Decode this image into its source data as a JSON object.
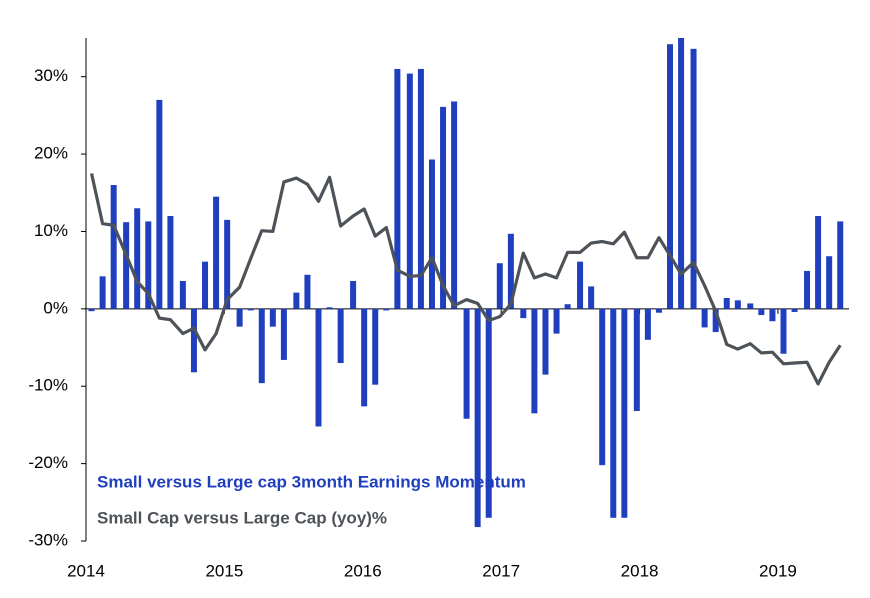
{
  "chart_data": {
    "type": "bar",
    "x": [
      2014.04,
      2014.12,
      2014.2,
      2014.29,
      2014.37,
      2014.45,
      2014.53,
      2014.61,
      2014.7,
      2014.78,
      2014.86,
      2014.94,
      2015.02,
      2015.11,
      2015.19,
      2015.27,
      2015.35,
      2015.43,
      2015.52,
      2015.6,
      2015.68,
      2015.76,
      2015.84,
      2015.93,
      2016.01,
      2016.09,
      2016.17,
      2016.25,
      2016.34,
      2016.42,
      2016.5,
      2016.58,
      2016.66,
      2016.75,
      2016.83,
      2016.91,
      2016.99,
      2017.07,
      2017.16,
      2017.24,
      2017.32,
      2017.4,
      2017.48,
      2017.57,
      2017.65,
      2017.73,
      2017.81,
      2017.89,
      2017.98,
      2018.06,
      2018.14,
      2018.22,
      2018.3,
      2018.39,
      2018.47,
      2018.55,
      2018.63,
      2018.71,
      2018.8,
      2018.88,
      2018.96,
      2019.04,
      2019.12,
      2019.21,
      2019.29,
      2019.37,
      2019.45
    ],
    "series": [
      {
        "name": "Small versus Large cap 3month Earnings Momentum",
        "type": "bar",
        "color": "#1f3fbf",
        "values": [
          -0.3,
          4.2,
          16,
          11.2,
          13,
          11.3,
          27,
          12,
          3.6,
          -8.2,
          6.1,
          14.5,
          11.5,
          -2.3,
          -0.2,
          -9.6,
          -2.3,
          -6.6,
          2.1,
          4.4,
          -15.2,
          0.2,
          -7,
          3.6,
          -12.6,
          -9.8,
          -0.2,
          31,
          30.4,
          31,
          19.3,
          26.1,
          26.8,
          -14.2,
          -28.2,
          -27,
          5.9,
          9.7,
          -1.2,
          -13.5,
          -8.5,
          -3.2,
          0.6,
          6.1,
          2.9,
          -20.2,
          -27,
          -27,
          -13.2,
          -4,
          -0.5,
          34.2,
          35,
          33.6,
          -2.4,
          -3,
          1.4,
          1.1,
          0.7,
          -0.8,
          -1.6,
          -5.8,
          -0.4,
          4.9,
          12,
          6.8,
          11.3
        ]
      },
      {
        "name": "Small Cap versus Large Cap (yoy)%",
        "type": "line",
        "color": "#4d5358",
        "values": [
          17.5,
          11,
          10.8,
          7,
          3.5,
          2,
          -1.2,
          -1.4,
          -3.2,
          -2.5,
          -5.3,
          -3.2,
          1.2,
          2.8,
          6.5,
          10.1,
          10,
          16.4,
          16.9,
          16.1,
          13.9,
          17,
          10.7,
          12,
          12.9,
          9.4,
          10.5,
          5,
          4.2,
          4.3,
          6.6,
          3,
          0.4,
          1.2,
          0.7,
          -1.5,
          -1,
          0.6,
          7.2,
          4,
          4.5,
          4,
          7.3,
          7.3,
          8.5,
          8.7,
          8.4,
          9.9,
          6.6,
          6.6,
          9.2,
          6.9,
          4.5,
          6,
          3,
          -0.3,
          -4.6,
          -5.2,
          -4.5,
          -5.7,
          -5.6,
          -7.1,
          -7,
          -6.9,
          -9.7,
          -6.9,
          -4.7
        ]
      }
    ],
    "xlim": [
      2014,
      2019.6
    ],
    "xticks": [
      2014,
      2015,
      2016,
      2017,
      2018,
      2019
    ],
    "ylim": [
      -30,
      35
    ],
    "yticks": [
      {
        "value": -30,
        "label": "-30%"
      },
      {
        "value": -20,
        "label": "-20%"
      },
      {
        "value": -10,
        "label": "-10%"
      },
      {
        "value": 0,
        "label": "0%"
      },
      {
        "value": 10,
        "label": "10%"
      },
      {
        "value": 20,
        "label": "20%"
      },
      {
        "value": 30,
        "label": "30%"
      }
    ],
    "grid": false
  }
}
